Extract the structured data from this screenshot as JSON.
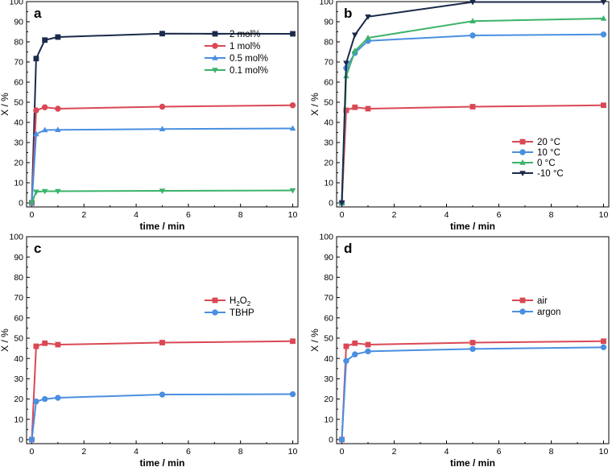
{
  "figure": {
    "x_values": [
      0,
      0.167,
      0.5,
      1,
      5,
      10
    ]
  },
  "chart_data": [
    {
      "type": "line",
      "panel": "a",
      "xlabel": "time / min",
      "ylabel": "X / %",
      "xlim": [
        -0.2,
        10.2
      ],
      "ylim": [
        -2,
        100
      ],
      "xticks": [
        0,
        2,
        4,
        6,
        8,
        10
      ],
      "yticks": [
        0,
        10,
        20,
        30,
        40,
        50,
        60,
        70,
        80,
        90,
        100
      ],
      "legend_position": "upper-right",
      "series": [
        {
          "name": "2 mol%",
          "color": "#1b2a4a",
          "marker": "square",
          "x": [
            0,
            0.167,
            0.5,
            1,
            5,
            10
          ],
          "y": [
            0,
            71.7,
            80.9,
            82.4,
            84.1,
            84.0
          ]
        },
        {
          "name": "1 mol%",
          "color": "#d94854",
          "marker": "circle",
          "x": [
            0,
            0.167,
            0.5,
            1,
            5,
            10
          ],
          "y": [
            0,
            46.0,
            47.5,
            46.8,
            47.8,
            48.5
          ]
        },
        {
          "name": "0.5 mol%",
          "color": "#4a8fe0",
          "marker": "triangle-up",
          "x": [
            0,
            0.167,
            0.5,
            1,
            5,
            10
          ],
          "y": [
            0,
            34.2,
            36.2,
            36.3,
            36.7,
            37.0
          ]
        },
        {
          "name": "0.1 mol%",
          "color": "#3bb36a",
          "marker": "triangle-down",
          "x": [
            0,
            0.167,
            0.5,
            1,
            5,
            10
          ],
          "y": [
            0,
            5.5,
            5.8,
            5.8,
            6.0,
            6.2
          ]
        }
      ]
    },
    {
      "type": "line",
      "panel": "b",
      "xlabel": "time / min",
      "ylabel": "X / %",
      "xlim": [
        -0.2,
        10.2
      ],
      "ylim": [
        -2,
        100
      ],
      "xticks": [
        0,
        2,
        4,
        6,
        8,
        10
      ],
      "yticks": [
        0,
        10,
        20,
        30,
        40,
        50,
        60,
        70,
        80,
        90,
        100
      ],
      "legend_position": "lower-right",
      "series": [
        {
          "name": "20 °C",
          "color": "#d94854",
          "marker": "square",
          "x": [
            0,
            0.167,
            0.5,
            1,
            5,
            10
          ],
          "y": [
            0,
            46.0,
            47.5,
            46.8,
            47.8,
            48.5
          ]
        },
        {
          "name": "10 °C",
          "color": "#4a8fe0",
          "marker": "circle",
          "x": [
            0,
            0.167,
            0.5,
            1,
            5,
            10
          ],
          "y": [
            0,
            67.0,
            74.5,
            80.5,
            83.2,
            83.7
          ]
        },
        {
          "name": "0 °C",
          "color": "#3bb36a",
          "marker": "triangle-up",
          "x": [
            0,
            0.167,
            0.5,
            1,
            5,
            10
          ],
          "y": [
            0,
            63.0,
            75.5,
            82.0,
            90.3,
            91.6
          ]
        },
        {
          "name": "-10 °C",
          "color": "#1b2a4a",
          "marker": "triangle-down",
          "x": [
            0,
            0.167,
            0.5,
            1,
            5,
            10
          ],
          "y": [
            0,
            69.5,
            83.5,
            92.5,
            99.8,
            99.8
          ]
        }
      ]
    },
    {
      "type": "line",
      "panel": "c",
      "xlabel": "time / min",
      "ylabel": "X / %",
      "xlim": [
        -0.2,
        10.2
      ],
      "ylim": [
        -2,
        100
      ],
      "xticks": [
        0,
        2,
        4,
        6,
        8,
        10
      ],
      "yticks": [
        0,
        10,
        20,
        30,
        40,
        50,
        60,
        70,
        80,
        90,
        100
      ],
      "legend_position": "upper-right",
      "series": [
        {
          "name": "H2O2",
          "label_parts": [
            "H",
            "2",
            "O",
            "2"
          ],
          "color": "#d94854",
          "marker": "square",
          "x": [
            0,
            0.167,
            0.5,
            1,
            5,
            10
          ],
          "y": [
            0,
            46.0,
            47.5,
            46.8,
            47.8,
            48.5
          ]
        },
        {
          "name": "TBHP",
          "color": "#4a8fe0",
          "marker": "circle",
          "x": [
            0,
            0.167,
            0.5,
            1,
            5,
            10
          ],
          "y": [
            0,
            18.8,
            20.0,
            20.6,
            22.2,
            22.4
          ]
        }
      ]
    },
    {
      "type": "line",
      "panel": "d",
      "xlabel": "time / min",
      "ylabel": "X / %",
      "xlim": [
        -0.2,
        10.2
      ],
      "ylim": [
        -2,
        100
      ],
      "xticks": [
        0,
        2,
        4,
        6,
        8,
        10
      ],
      "yticks": [
        0,
        10,
        20,
        30,
        40,
        50,
        60,
        70,
        80,
        90,
        100
      ],
      "legend_position": "upper-right",
      "series": [
        {
          "name": "air",
          "color": "#d94854",
          "marker": "square",
          "x": [
            0,
            0.167,
            0.5,
            1,
            5,
            10
          ],
          "y": [
            0,
            46.0,
            47.5,
            46.8,
            47.8,
            48.5
          ]
        },
        {
          "name": "argon",
          "color": "#4a8fe0",
          "marker": "circle",
          "x": [
            0,
            0.167,
            0.5,
            1,
            5,
            10
          ],
          "y": [
            0,
            38.8,
            42.0,
            43.5,
            44.7,
            45.5
          ]
        }
      ]
    }
  ]
}
